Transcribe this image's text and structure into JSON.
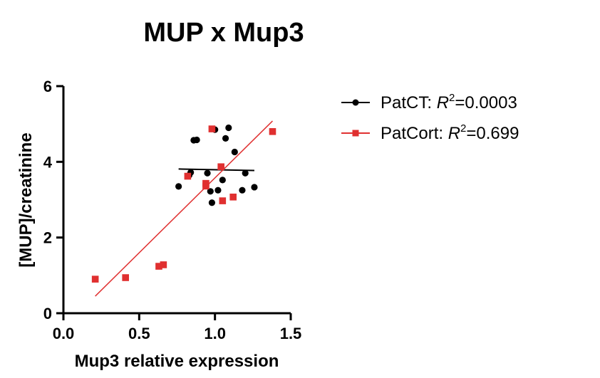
{
  "chart_data": {
    "type": "scatter",
    "title": "MUP x Mup3",
    "xlabel": "Mup3 relative expression",
    "ylabel": "[MUP]/creatinine",
    "xlim": [
      0,
      1.5
    ],
    "ylim": [
      0,
      6
    ],
    "xticks": [
      0.0,
      0.5,
      1.0,
      1.5
    ],
    "xtick_labels": [
      "0.0",
      "0.5",
      "1.0",
      "1.5"
    ],
    "yticks": [
      0,
      2,
      4,
      6
    ],
    "ytick_labels": [
      "0",
      "2",
      "4",
      "6"
    ],
    "legend_position": "top-right",
    "series": [
      {
        "name": "PatCT",
        "legend_prefix": "PatCT: ",
        "r2_symbol": "R",
        "r2_superscript": "2",
        "r2_value": "=0.0003",
        "color": "#000000",
        "marker": "circle",
        "points": [
          [
            1.09,
            4.9
          ],
          [
            1.0,
            4.85
          ],
          [
            0.88,
            4.58
          ],
          [
            0.86,
            4.57
          ],
          [
            1.07,
            4.62
          ],
          [
            1.13,
            4.26
          ],
          [
            0.84,
            3.72
          ],
          [
            0.83,
            3.65
          ],
          [
            0.95,
            3.7
          ],
          [
            1.05,
            3.52
          ],
          [
            1.2,
            3.7
          ],
          [
            0.76,
            3.35
          ],
          [
            0.97,
            3.22
          ],
          [
            1.02,
            3.25
          ],
          [
            1.18,
            3.25
          ],
          [
            1.26,
            3.33
          ],
          [
            0.98,
            2.92
          ]
        ],
        "fit": {
          "x": [
            0.76,
            1.26
          ],
          "y": [
            3.81,
            3.77
          ]
        }
      },
      {
        "name": "PatCort",
        "legend_prefix": "PatCort: ",
        "r2_symbol": "R",
        "r2_superscript": "2",
        "r2_value": "=0.699",
        "color": "#e03030",
        "marker": "square",
        "points": [
          [
            0.21,
            0.9
          ],
          [
            0.41,
            0.94
          ],
          [
            0.63,
            1.24
          ],
          [
            0.66,
            1.28
          ],
          [
            0.82,
            3.62
          ],
          [
            0.94,
            3.36
          ],
          [
            0.94,
            3.43
          ],
          [
            0.98,
            4.87
          ],
          [
            1.04,
            3.87
          ],
          [
            1.05,
            2.97
          ],
          [
            1.12,
            3.07
          ],
          [
            1.38,
            4.8
          ]
        ],
        "fit": {
          "x": [
            0.21,
            1.38
          ],
          "y": [
            0.45,
            5.08
          ]
        }
      }
    ]
  }
}
